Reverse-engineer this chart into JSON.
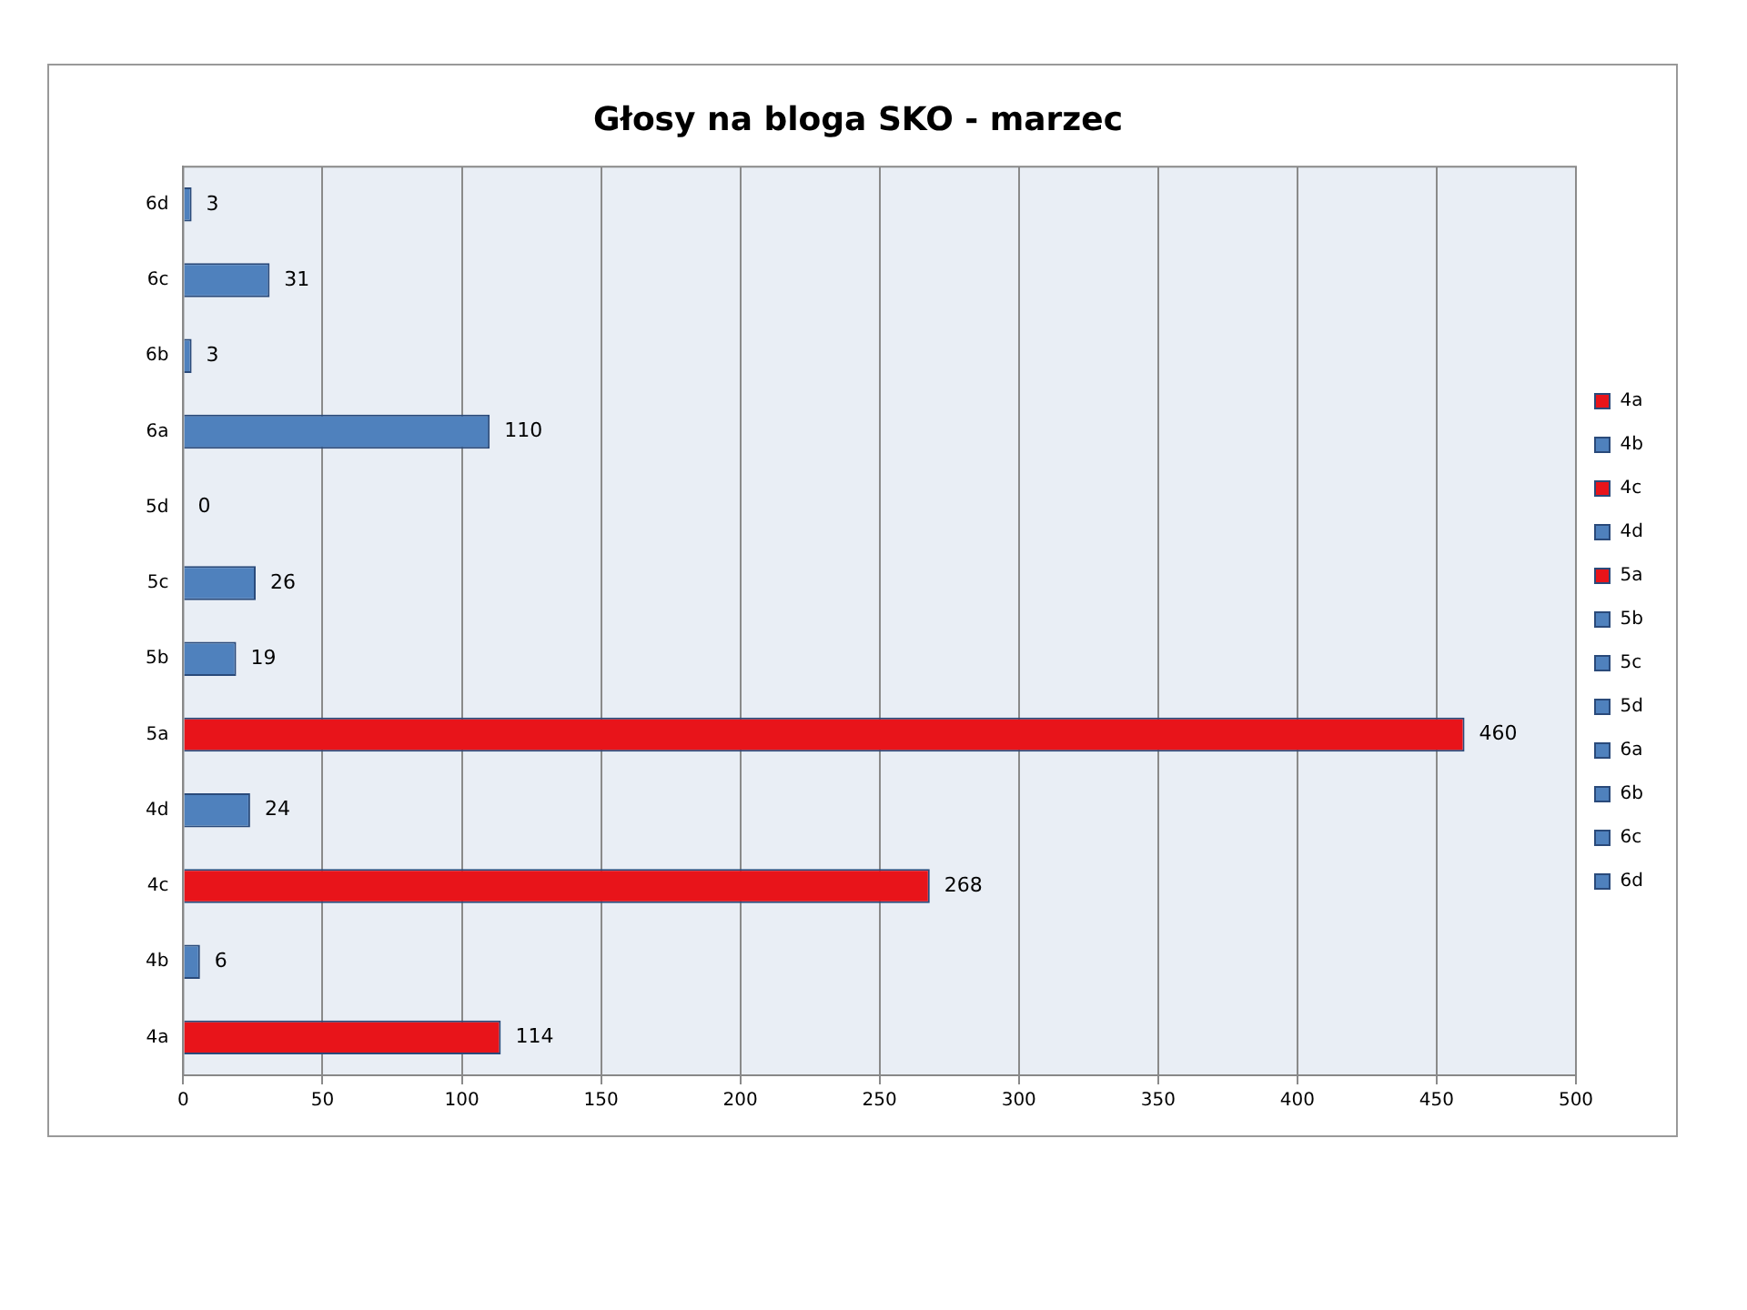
{
  "chart_data": {
    "type": "bar",
    "orientation": "horizontal",
    "title": "Głosy na bloga SKO - marzec",
    "categories": [
      "6d",
      "6c",
      "6b",
      "6a",
      "5d",
      "5c",
      "5b",
      "5a",
      "4d",
      "4c",
      "4b",
      "4a"
    ],
    "values": [
      3,
      31,
      3,
      110,
      0,
      26,
      19,
      460,
      24,
      268,
      6,
      114
    ],
    "colors": [
      "#4f81bd",
      "#4f81bd",
      "#4f81bd",
      "#4f81bd",
      "#4f81bd",
      "#4f81bd",
      "#4f81bd",
      "#e8141a",
      "#4f81bd",
      "#e8141a",
      "#4f81bd",
      "#e8141a"
    ],
    "xlim": [
      0,
      500
    ],
    "xticks": [
      0,
      50,
      100,
      150,
      200,
      250,
      300,
      350,
      400,
      450,
      500
    ],
    "grid": "x",
    "data_labels": true
  }
}
